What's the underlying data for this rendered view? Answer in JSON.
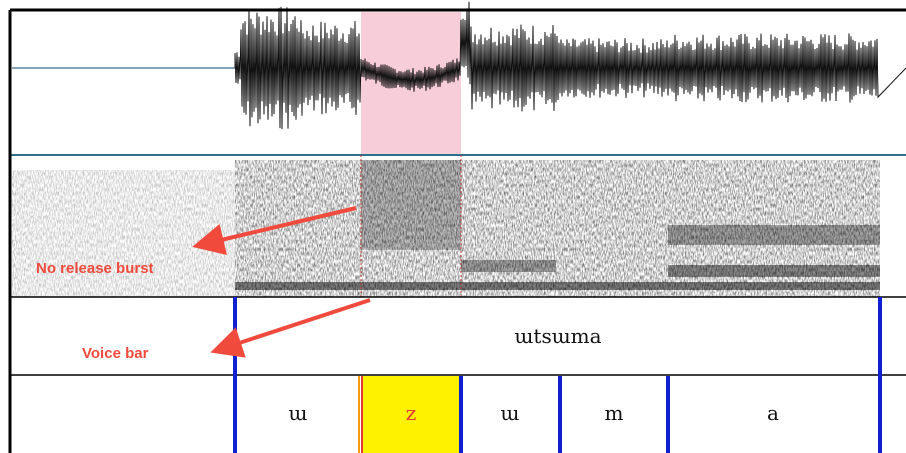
{
  "annotations": [
    "No release burst",
    "Voice bar"
  ],
  "tiers": [
    {
      "intervals": [
        "ɯtsɯma"
      ]
    },
    {
      "intervals": [
        "ɯ",
        "z",
        "ɯ",
        "m",
        "a"
      ]
    }
  ]
}
